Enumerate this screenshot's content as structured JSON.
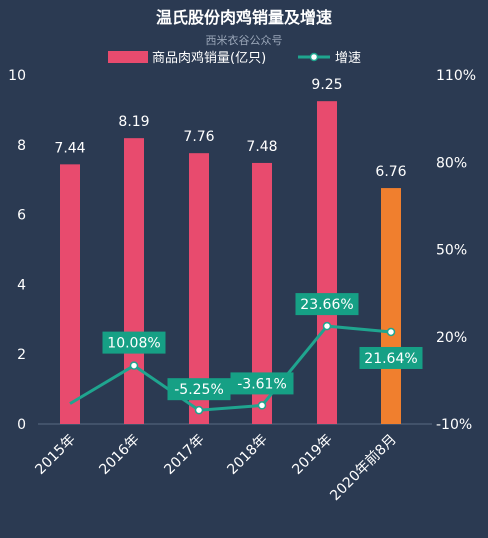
{
  "chart_data": {
    "type": "bar",
    "title": "温氏股份肉鸡销量及增速",
    "watermark": "西米衣谷公众号",
    "categories": [
      "2015年",
      "2016年",
      "2017年",
      "2018年",
      "2019年",
      "2020年前8月"
    ],
    "series": [
      {
        "name": "商品肉鸡销量(亿只)",
        "type": "bar",
        "axis": "left",
        "values": [
          7.44,
          8.19,
          7.76,
          7.48,
          9.25,
          6.76
        ],
        "labels": [
          "7.44",
          "8.19",
          "7.76",
          "7.48",
          "9.25",
          "6.76"
        ]
      },
      {
        "name": "增速",
        "type": "line",
        "axis": "right",
        "values": [
          -3.0,
          10.08,
          -5.25,
          -3.61,
          23.66,
          21.64
        ],
        "labels": [
          "",
          "10.08%",
          "-5.25%",
          "-3.61%",
          "23.66%",
          "21.64%"
        ]
      }
    ],
    "y_left": {
      "min": 0,
      "max": 10,
      "ticks": [
        "0",
        "2",
        "4",
        "6",
        "8",
        "10"
      ]
    },
    "y_right": {
      "min": -10,
      "max": 110,
      "ticks": [
        "-10%",
        "20%",
        "50%",
        "80%",
        "110%"
      ]
    },
    "legend_position": "top",
    "colors": {
      "background": "#2b3a52",
      "bar": "#e84b6e",
      "bar_highlight": "#f07f2e",
      "line": "#1fa58f",
      "label_box": "#16a085",
      "text": "#ffffff",
      "watermark": "#9aa6b8"
    }
  }
}
